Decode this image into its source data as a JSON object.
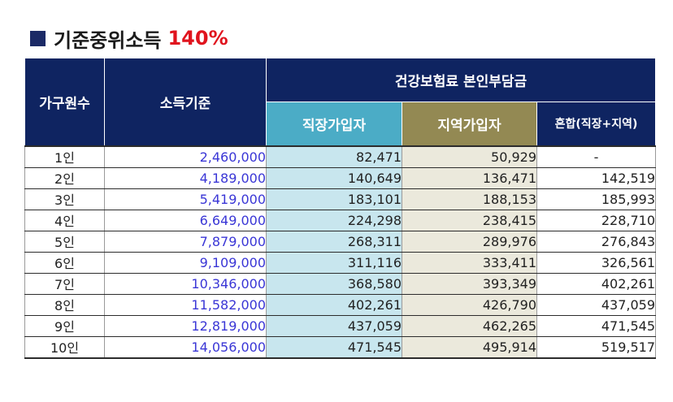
{
  "title": {
    "main": "기준중위소득",
    "accent": "140%"
  },
  "colors": {
    "header_navy": "#0f2461",
    "employee_header": "#4bacc6",
    "local_header": "#938953",
    "employee_cell": "#c8e6ee",
    "local_cell": "#ebe9dc",
    "income_text": "#3a36d6",
    "accent_red": "#e0141e"
  },
  "icons": {
    "title_marker": "square-bullet-icon"
  },
  "table": {
    "headers": {
      "household": "가구원수",
      "income": "소득기준",
      "premium_group": "건강보험료 본인부담금",
      "employee": "직장가입자",
      "local": "지역가입자",
      "mixed": "혼합(직장+지역)"
    },
    "rows": [
      {
        "household": "1인",
        "income": "2,460,000",
        "employee": "82,471",
        "local": "50,929",
        "mixed": "-"
      },
      {
        "household": "2인",
        "income": "4,189,000",
        "employee": "140,649",
        "local": "136,471",
        "mixed": "142,519"
      },
      {
        "household": "3인",
        "income": "5,419,000",
        "employee": "183,101",
        "local": "188,153",
        "mixed": "185,993"
      },
      {
        "household": "4인",
        "income": "6,649,000",
        "employee": "224,298",
        "local": "238,415",
        "mixed": "228,710"
      },
      {
        "household": "5인",
        "income": "7,879,000",
        "employee": "268,311",
        "local": "289,976",
        "mixed": "276,843"
      },
      {
        "household": "6인",
        "income": "9,109,000",
        "employee": "311,116",
        "local": "333,411",
        "mixed": "326,561"
      },
      {
        "household": "7인",
        "income": "10,346,000",
        "employee": "368,580",
        "local": "393,349",
        "mixed": "402,261"
      },
      {
        "household": "8인",
        "income": "11,582,000",
        "employee": "402,261",
        "local": "426,790",
        "mixed": "437,059"
      },
      {
        "household": "9인",
        "income": "12,819,000",
        "employee": "437,059",
        "local": "462,265",
        "mixed": "471,545"
      },
      {
        "household": "10인",
        "income": "14,056,000",
        "employee": "471,545",
        "local": "495,914",
        "mixed": "519,517"
      }
    ]
  }
}
